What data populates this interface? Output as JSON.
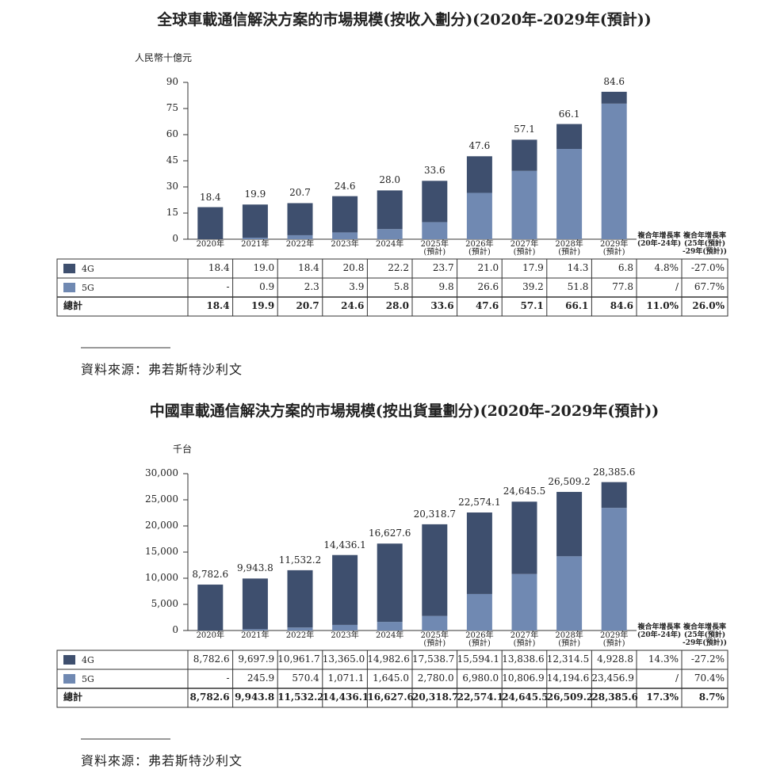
{
  "chart_data": [
    {
      "type": "bar",
      "stacked": true,
      "title": "全球車載通信解決方案的市場規模(按收入劃分)(2020年-2029年(預計))",
      "y_label": "人民幣十億元",
      "categories": [
        "2020年",
        "2021年",
        "2022年",
        "2023年",
        "2024年",
        "2025年\n(預計)",
        "2026年\n(預計)",
        "2027年\n(預計)",
        "2028年\n(預計)",
        "2029年\n(預計)"
      ],
      "ylim": [
        0,
        90
      ],
      "yticks": [
        0,
        15,
        30,
        45,
        60,
        75,
        90
      ],
      "cagr_headers": [
        "複合年增長率\n(20年-24年)",
        "複合年增長率\n(25年(預計)\n-29年(預計))"
      ],
      "series": [
        {
          "name": "4G",
          "color": "#3e4f6e",
          "values": [
            18.4,
            19.0,
            18.4,
            20.8,
            22.2,
            23.7,
            21.0,
            17.9,
            14.3,
            6.8
          ],
          "value_labels": [
            "18.4",
            "19.0",
            "18.4",
            "20.8",
            "22.2",
            "23.7",
            "21.0",
            "17.9",
            "14.3",
            "6.8"
          ],
          "cagr": [
            {
              "value": 4.8,
              "label": "4.8%"
            },
            {
              "value": -27.0,
              "label": "-27.0%"
            }
          ]
        },
        {
          "name": "5G",
          "color": "#7089b2",
          "values": [
            null,
            0.9,
            2.3,
            3.9,
            5.8,
            9.8,
            26.6,
            39.2,
            51.8,
            77.8
          ],
          "value_labels": [
            "-",
            "0.9",
            "2.3",
            "3.9",
            "5.8",
            "9.8",
            "26.6",
            "39.2",
            "51.8",
            "77.8"
          ],
          "cagr": [
            {
              "value": null,
              "label": "/"
            },
            {
              "value": 67.7,
              "label": "67.7%"
            }
          ]
        }
      ],
      "total": {
        "name": "總計",
        "values": [
          18.4,
          19.9,
          20.7,
          24.6,
          28.0,
          33.6,
          47.6,
          57.1,
          66.1,
          84.6
        ],
        "value_labels": [
          "18.4",
          "19.9",
          "20.7",
          "24.6",
          "28.0",
          "33.6",
          "47.6",
          "57.1",
          "66.1",
          "84.6"
        ],
        "cagr": [
          {
            "value": 11.0,
            "label": "11.0%"
          },
          {
            "value": 26.0,
            "label": "26.0%"
          }
        ]
      },
      "source": "資料來源：弗若斯特沙利文"
    },
    {
      "type": "bar",
      "stacked": true,
      "title": "中國車載通信解決方案的市場規模(按出貨量劃分)(2020年-2029年(預計))",
      "y_label": "千台",
      "categories": [
        "2020年",
        "2021年",
        "2022年",
        "2023年",
        "2024年",
        "2025年\n(預計)",
        "2026年\n(預計)",
        "2027年\n(預計)",
        "2028年\n(預計)",
        "2029年\n(預計)"
      ],
      "ylim": [
        0,
        30000
      ],
      "yticks": [
        0,
        {
          "value": 5000,
          "label": "5,000"
        },
        {
          "value": 10000,
          "label": "10,000"
        },
        {
          "value": 15000,
          "label": "15,000"
        },
        {
          "value": 20000,
          "label": "20,000"
        },
        {
          "value": 25000,
          "label": "25,000"
        },
        {
          "value": 30000,
          "label": "30,000"
        }
      ],
      "cagr_headers": [
        "複合年增長率\n(20年-24年)",
        "複合年增長率\n(25年(預計)\n-29年(預計))"
      ],
      "series": [
        {
          "name": "4G",
          "color": "#3e4f6e",
          "values": [
            8782.6,
            9697.9,
            10961.7,
            13365.0,
            14982.6,
            17538.7,
            15594.1,
            13838.6,
            12314.5,
            4928.8
          ],
          "value_labels": [
            "8,782.6",
            "9,697.9",
            "10,961.7",
            "13,365.0",
            "14,982.6",
            "17,538.7",
            "15,594.1",
            "13,838.6",
            "12,314.5",
            "4,928.8"
          ],
          "cagr": [
            {
              "value": 14.3,
              "label": "14.3%"
            },
            {
              "value": -27.2,
              "label": "-27.2%"
            }
          ]
        },
        {
          "name": "5G",
          "color": "#7089b2",
          "values": [
            null,
            245.9,
            570.4,
            1071.1,
            1645.0,
            2780.0,
            6980.0,
            10806.9,
            14194.6,
            23456.9
          ],
          "value_labels": [
            "-",
            "245.9",
            "570.4",
            "1,071.1",
            "1,645.0",
            "2,780.0",
            "6,980.0",
            "10,806.9",
            "14,194.6",
            "23,456.9"
          ],
          "cagr": [
            {
              "value": null,
              "label": "/"
            },
            {
              "value": 70.4,
              "label": "70.4%"
            }
          ]
        }
      ],
      "total": {
        "name": "總計",
        "values": [
          8782.6,
          9943.8,
          11532.2,
          14436.1,
          16627.6,
          20318.7,
          22574.1,
          24645.5,
          26509.2,
          28385.6
        ],
        "value_labels": [
          "8,782.6",
          "9,943.8",
          "11,532.2",
          "14,436.1",
          "16,627.6",
          "20,318.7",
          "22,574.1",
          "24,645.5",
          "26,509.2",
          "28,385.6"
        ],
        "cagr": [
          {
            "value": 17.3,
            "label": "17.3%"
          },
          {
            "value": 8.7,
            "label": "8.7%"
          }
        ]
      },
      "source": "資料來源：弗若斯特沙利文"
    }
  ]
}
